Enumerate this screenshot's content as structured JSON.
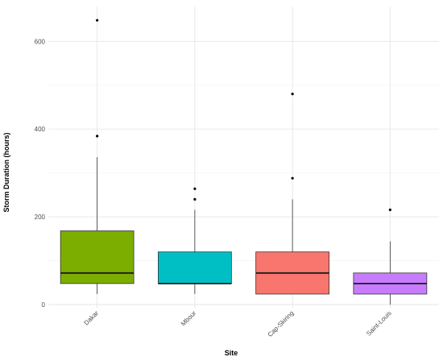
{
  "chart_data": {
    "type": "boxplot",
    "xlabel": "Site",
    "ylabel": "Storm Duration (hours)",
    "ylim": [
      -20,
      672
    ],
    "y_ticks": [
      0,
      200,
      400,
      600
    ],
    "y_tick_labels": [
      "0",
      "200",
      "400",
      "600"
    ],
    "grid": true,
    "legend": "none",
    "categories": [
      "Dakar",
      "Mbour",
      "Cap-Skiring",
      "Saint-Louis"
    ],
    "boxes": [
      {
        "category": "Dakar",
        "color": "#7CAE00",
        "whisker_low": 24,
        "q1": 48,
        "median": 72,
        "q3": 168,
        "whisker_high": 336,
        "outliers": [
          384,
          648
        ]
      },
      {
        "category": "Mbour",
        "color": "#00BFC4",
        "whisker_low": 24,
        "q1": 48,
        "median": 48,
        "q3": 120,
        "whisker_high": 216,
        "outliers": [
          240,
          264
        ]
      },
      {
        "category": "Cap-Skiring",
        "color": "#F8766D",
        "whisker_low": 24,
        "q1": 24,
        "median": 72,
        "q3": 120,
        "whisker_high": 240,
        "outliers": [
          288,
          480
        ]
      },
      {
        "category": "Saint-Louis",
        "color": "#C77CFF",
        "whisker_low": 0,
        "q1": 24,
        "median": 48,
        "q3": 72,
        "whisker_high": 144,
        "outliers": [
          216
        ]
      }
    ]
  }
}
